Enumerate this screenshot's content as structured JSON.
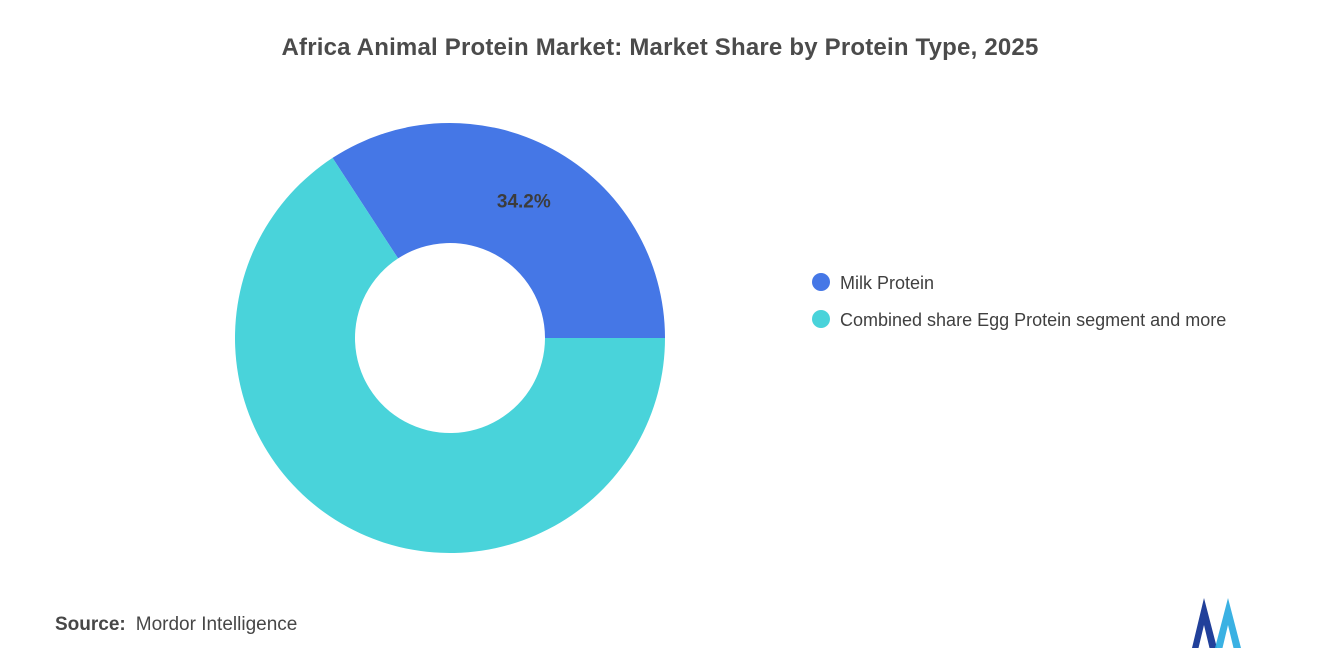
{
  "chart_data": {
    "type": "donut",
    "title": "Africa Animal Protein Market: Market Share by Protein Type, 2025",
    "slices": [
      {
        "label": "Milk Protein",
        "value": 34.2,
        "data_label": "34.2%",
        "color": "#4577e6"
      },
      {
        "label": "Combined share Egg Protein segment and more",
        "value": 65.8,
        "data_label": "",
        "color": "#49d3da"
      }
    ],
    "legend_position": "right",
    "start_angle_deg": -33.12,
    "inner_radius_ratio": 0.44,
    "background": "#ffffff"
  },
  "footer": {
    "source_label": "Source:",
    "source_text": "Mordor Intelligence"
  },
  "brand": {
    "logo_dark": "#21409a",
    "logo_light": "#29aae1"
  }
}
